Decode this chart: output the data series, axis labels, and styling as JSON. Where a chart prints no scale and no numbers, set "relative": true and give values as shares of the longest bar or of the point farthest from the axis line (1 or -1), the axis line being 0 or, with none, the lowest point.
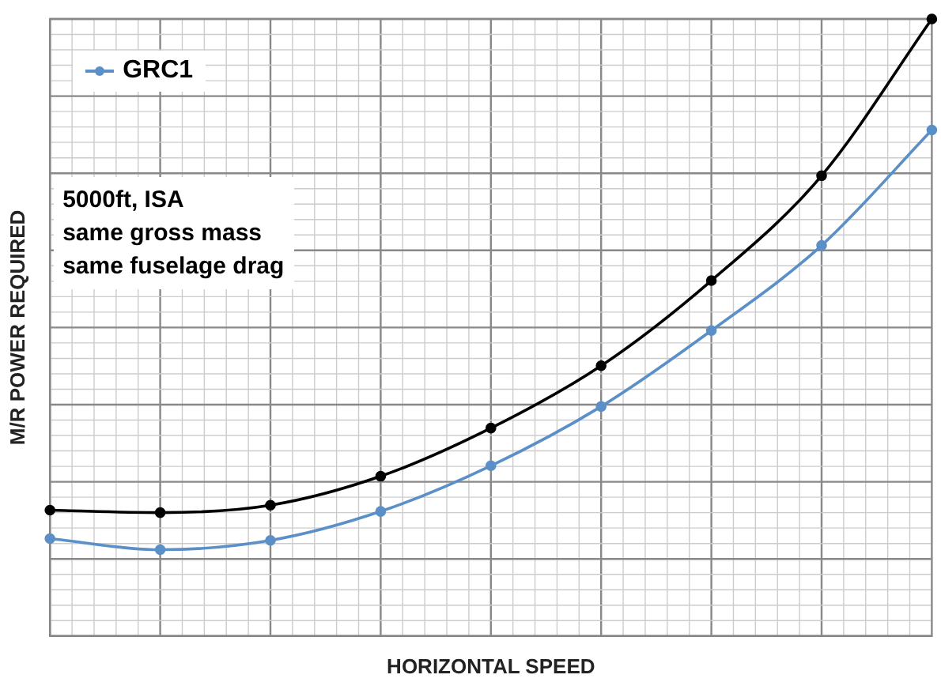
{
  "chart_data": {
    "type": "line",
    "xlabel": "HORIZONTAL SPEED",
    "ylabel": "M/R POWER REQUIRED",
    "relative": true,
    "grid": true,
    "legend": "top left",
    "marker": "circle",
    "line_style": "solid",
    "categories": [
      null,
      null,
      null,
      null,
      null,
      null,
      null,
      null,
      null
    ],
    "series": [
      {
        "color": "#000000",
        "values": [
          0.204,
          0.2,
          0.212,
          0.259,
          0.337,
          0.438,
          0.576,
          0.746,
          1
        ]
      },
      {
        "name": "GRC1",
        "color": "#5b8fc7",
        "values": [
          0.158,
          0.14,
          0.155,
          0.202,
          0.276,
          0.372,
          0.495,
          0.633,
          0.82
        ]
      }
    ],
    "annotations": [
      "5000ft, ISA",
      "same gross mass",
      "same fuselage drag"
    ]
  }
}
